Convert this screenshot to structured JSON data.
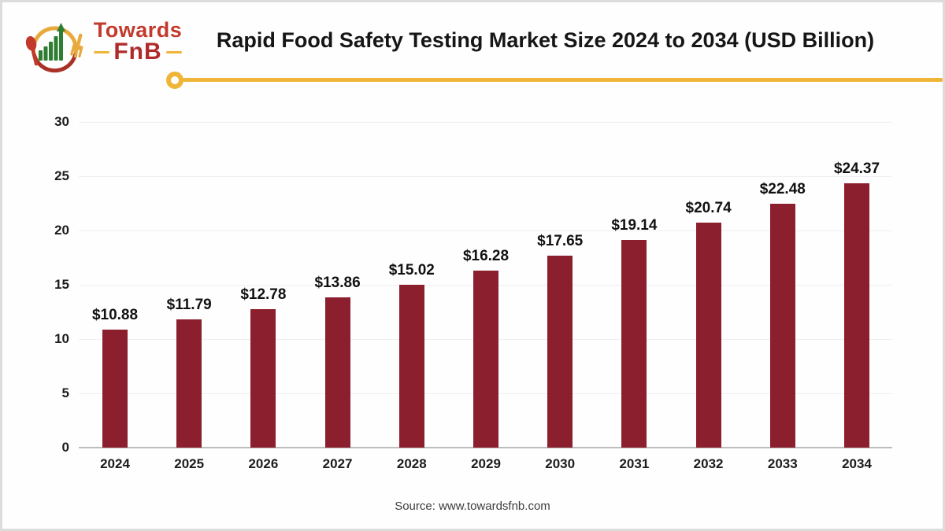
{
  "header": {
    "logo": {
      "brand_top": "Towards",
      "brand_bottom": "FnB"
    },
    "title": "Rapid Food Safety Testing Market Size 2024 to 2034 (USD Billion)"
  },
  "chart_data": {
    "type": "bar",
    "title": "Rapid Food Safety Testing Market Size 2024 to 2034 (USD Billion)",
    "categories": [
      "2024",
      "2025",
      "2026",
      "2027",
      "2028",
      "2029",
      "2030",
      "2031",
      "2032",
      "2033",
      "2034"
    ],
    "values": [
      10.88,
      11.79,
      12.78,
      13.86,
      15.02,
      16.28,
      17.65,
      19.14,
      20.74,
      22.48,
      24.37
    ],
    "value_labels": [
      "$10.88",
      "$11.79",
      "$12.78",
      "$13.86",
      "$15.02",
      "$16.28",
      "$17.65",
      "$19.14",
      "$20.74",
      "$22.48",
      "$24.37"
    ],
    "xlabel": "",
    "ylabel": "",
    "ylim": [
      0,
      30
    ],
    "yticks": [
      0,
      5,
      10,
      15,
      20,
      25,
      30
    ],
    "grid": true,
    "legend": false,
    "bar_color": "#8c1f2e"
  },
  "footer": {
    "source": "Source: www.towardsfnb.com"
  },
  "colors": {
    "bar": "#8c1f2e",
    "accent_gold": "#efb537",
    "logo_red": "#c23a2e",
    "logo_dark_red": "#b02a2a",
    "logo_green": "#2e7d32",
    "grid": "#efefef",
    "axis_line": "#bdbdbd",
    "title_text": "#161616"
  }
}
